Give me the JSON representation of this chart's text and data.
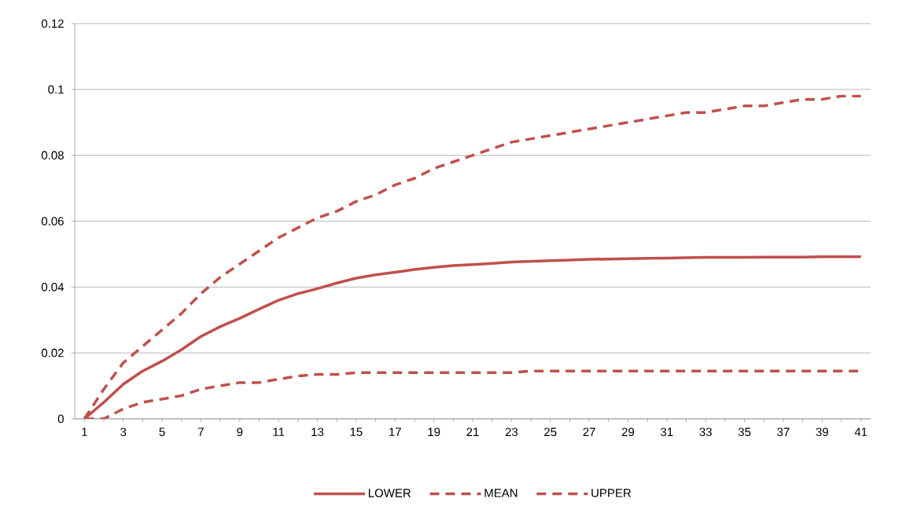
{
  "chart_data": {
    "type": "line",
    "categories": [
      "1",
      null,
      "3",
      null,
      "5",
      null,
      "7",
      null,
      "9",
      null,
      "11",
      null,
      "13",
      null,
      "15",
      null,
      "17",
      null,
      "19",
      null,
      "21",
      null,
      "23",
      null,
      "25",
      null,
      "27",
      null,
      "29",
      null,
      "31",
      null,
      "33",
      null,
      "35",
      null,
      "37",
      null,
      "39",
      null,
      "41"
    ],
    "series": [
      {
        "name": "LOWER",
        "color": "#c0504d",
        "line_style": "solid",
        "values": [
          0,
          0.005,
          0.0105,
          0.0145,
          0.0175,
          0.021,
          0.025,
          0.028,
          0.0305,
          0.0333,
          0.036,
          0.038,
          0.0395,
          0.0412,
          0.0427,
          0.0437,
          0.0445,
          0.0453,
          0.046,
          0.0465,
          0.0468,
          0.0472,
          0.0476,
          0.0478,
          0.048,
          0.0482,
          0.0484,
          0.0485,
          0.0486,
          0.0487,
          0.0488,
          0.0489,
          0.049,
          0.049,
          0.049,
          0.0491,
          0.0491,
          0.0491,
          0.0492,
          0.0492,
          0.0492
        ]
      },
      {
        "name": "MEAN",
        "color": "#c0504d",
        "line_style": "dashed",
        "values": [
          0,
          0,
          0.003,
          0.005,
          0.006,
          0.007,
          0.009,
          0.01,
          0.011,
          0.011,
          0.012,
          0.013,
          0.0135,
          0.0135,
          0.014,
          0.014,
          0.014,
          0.014,
          0.014,
          0.014,
          0.014,
          0.014,
          0.014,
          0.0145,
          0.0145,
          0.0145,
          0.0145,
          0.0145,
          0.0145,
          0.0145,
          0.0145,
          0.0145,
          0.0145,
          0.0145,
          0.0145,
          0.0145,
          0.0145,
          0.0145,
          0.0145,
          0.0145,
          0.0145
        ]
      },
      {
        "name": "UPPER",
        "color": "#c0504d",
        "line_style": "dashed",
        "values": [
          0,
          0.009,
          0.017,
          0.022,
          0.027,
          0.032,
          0.038,
          0.043,
          0.047,
          0.051,
          0.055,
          0.058,
          0.061,
          0.063,
          0.066,
          0.068,
          0.071,
          0.073,
          0.076,
          0.078,
          0.08,
          0.082,
          0.084,
          0.085,
          0.086,
          0.087,
          0.088,
          0.089,
          0.09,
          0.091,
          0.092,
          0.093,
          0.093,
          0.094,
          0.095,
          0.095,
          0.096,
          0.097,
          0.097,
          0.098,
          0.098
        ]
      }
    ],
    "ylim": [
      0,
      0.12
    ],
    "yticks": [
      0,
      0.02,
      0.04,
      0.06,
      0.08,
      0.1,
      0.12
    ],
    "grid": "y",
    "legend": "bottom",
    "marker": "none"
  }
}
